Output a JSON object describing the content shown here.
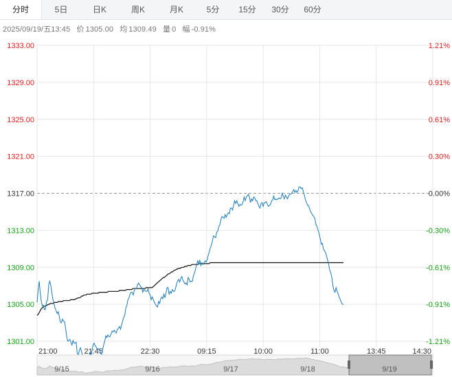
{
  "tabs": [
    {
      "label": "分时",
      "active": true
    },
    {
      "label": "5日",
      "active": false
    },
    {
      "label": "日K",
      "active": false
    },
    {
      "label": "周K",
      "active": false
    },
    {
      "label": "月K",
      "active": false
    },
    {
      "label": "5分",
      "active": false
    },
    {
      "label": "15分",
      "active": false
    },
    {
      "label": "30分",
      "active": false
    },
    {
      "label": "60分",
      "active": false
    }
  ],
  "info": {
    "datetime": "2025/09/19/五13:45",
    "price_label": "价",
    "price": "1305.00",
    "avg_label": "均",
    "avg": "1309.49",
    "vol_label": "量",
    "vol": "0",
    "change_label": "幅",
    "change": "-0.91%"
  },
  "colors": {
    "up": "#e02020",
    "down": "#14a014",
    "neutral": "#333333",
    "price_line": "#1a7ab8",
    "avg_line": "#111111",
    "grid": "#e6e6e6",
    "baseline": "#999999"
  },
  "chart_data": {
    "type": "line",
    "title": "",
    "base_price": 1317.0,
    "ylim": [
      1301.0,
      1333.0
    ],
    "y_ticks_left": [
      "1333.00",
      "1329.00",
      "1325.00",
      "1321.00",
      "1317.00",
      "1313.00",
      "1309.00",
      "1305.00",
      "1301.00"
    ],
    "y_ticks_right": [
      "1.21%",
      "0.91%",
      "0.61%",
      "0.30%",
      "0.00%",
      "-0.30%",
      "-0.61%",
      "-0.91%",
      "-1.21%"
    ],
    "x_tick_labels": [
      "21:00",
      "21:45",
      "22:30",
      "09:15",
      "10:00",
      "11:00",
      "13:45",
      "14:30"
    ],
    "grid": true,
    "series": [
      {
        "values": [
          1305.2,
          1306.5,
          1307.5,
          1306.2,
          1305.3,
          1304.8,
          1304.9,
          1304.4,
          1304.5,
          1305.3,
          1305.5,
          1307.1,
          1307.5,
          1307.0,
          1306.2,
          1305.5,
          1305.1,
          1304.6,
          1304.3,
          1304.0,
          1304.2,
          1303.7,
          1303.1,
          1303.0,
          1303.4,
          1303.2,
          1303.1,
          1302.4,
          1301.5,
          1301.0,
          1301.1,
          1301.2,
          1300.9,
          1300.6,
          1301.1,
          1300.8,
          1300.8,
          1300.9,
          1299.7,
          1299.5,
          1300.0,
          1300.3,
          1299.9,
          1299.5,
          1299.0,
          1298.7,
          1298.3,
          1299.1,
          1299.3,
          1299.1,
          1299.8,
          1299.4,
          1300.0,
          1300.6,
          1300.8,
          1300.5,
          1300.4,
          1300.1,
          1300.2,
          1300.1,
          1299.8,
          1299.6,
          1300.1,
          1300.6,
          1301.0,
          1301.6,
          1301.4,
          1301.7,
          1301.5,
          1301.5,
          1301.8,
          1302.1,
          1302.0,
          1302.2,
          1302.0,
          1301.9,
          1302.3,
          1302.4,
          1302.6,
          1302.3,
          1302.8,
          1303.2,
          1303.6,
          1303.8,
          1304.6,
          1304.9,
          1305.5,
          1305.7,
          1306.1,
          1306.3,
          1306.3,
          1306.0,
          1306.5,
          1306.7,
          1306.7,
          1307.1,
          1307.3,
          1307.1,
          1306.9,
          1306.8,
          1306.3,
          1306.6,
          1306.5,
          1306.4,
          1306.4,
          1306.7,
          1306.2,
          1306.0,
          1305.5,
          1305.8,
          1305.5,
          1305.2,
          1305.0,
          1304.8,
          1304.7,
          1305.3,
          1305.1,
          1305.6,
          1305.8,
          1305.6,
          1306.1,
          1305.7,
          1306.2,
          1306.8,
          1306.8,
          1306.1,
          1306.4,
          1306.2,
          1306.6,
          1306.4,
          1306.4,
          1306.7,
          1307.2,
          1307.5,
          1307.7,
          1307.4,
          1307.8,
          1308.0,
          1307.6,
          1307.4,
          1307.2,
          1307.3,
          1307.1,
          1307.9,
          1307.7,
          1307.4,
          1307.5,
          1307.5,
          1308.1,
          1308.4,
          1308.8,
          1309.3,
          1309.7,
          1309.4,
          1309.8,
          1309.2,
          1309.5,
          1309.3,
          1309.4,
          1309.7,
          1309.6,
          1309.8,
          1310.3,
          1310.7,
          1311.1,
          1311.4,
          1311.9,
          1312.4,
          1312.3,
          1312.2,
          1312.8,
          1312.9,
          1313.4,
          1313.6,
          1314.2,
          1314.5,
          1314.4,
          1314.3,
          1314.7,
          1314.4,
          1314.7,
          1314.9,
          1314.8,
          1315.4,
          1315.4,
          1315.2,
          1315.7,
          1316.2,
          1315.9,
          1316.2,
          1315.9,
          1315.6,
          1315.8,
          1315.7,
          1315.8,
          1316.1,
          1316.6,
          1316.2,
          1316.6,
          1316.7,
          1316.9,
          1316.6,
          1316.0,
          1316.4,
          1316.2,
          1316.6,
          1316.5,
          1316.2,
          1316.2,
          1315.9,
          1315.6,
          1315.4,
          1315.9,
          1316.0,
          1315.6,
          1316.0,
          1316.0,
          1316.1,
          1315.8,
          1315.6,
          1315.7,
          1315.8,
          1316.2,
          1316.3,
          1316.7,
          1316.3,
          1316.4,
          1316.3,
          1316.4,
          1316.5,
          1316.4,
          1316.5,
          1317.0,
          1316.7,
          1316.4,
          1316.8,
          1316.6,
          1316.4,
          1316.7,
          1316.9,
          1316.9,
          1317.0,
          1317.2,
          1317.4,
          1317.1,
          1317.3,
          1317.1,
          1317.3,
          1317.7,
          1317.7,
          1317.5,
          1317.6,
          1317.2,
          1316.8,
          1316.3,
          1316.0,
          1315.7,
          1315.7,
          1315.3,
          1315.0,
          1314.8,
          1314.6,
          1314.5,
          1314.2,
          1313.6,
          1313.4,
          1313.0,
          1312.6,
          1312.1,
          1311.5,
          1311.6,
          1311.0,
          1310.8,
          1310.6,
          1310.2,
          1309.8,
          1309.3,
          1308.7,
          1308.4,
          1307.9,
          1307.0,
          1306.5,
          1306.3,
          1306.8,
          1306.4,
          1306.1,
          1305.8,
          1305.5,
          1305.2,
          1305.0,
          1305.0
        ]
      },
      {
        "values": [
          1303.8,
          1303.9,
          1304.1,
          1304.3,
          1304.5,
          1304.6,
          1304.7,
          1304.8,
          1304.8,
          1304.9,
          1304.9,
          1305.0,
          1305.0,
          1305.1,
          1305.1,
          1305.1,
          1305.1,
          1305.2,
          1305.2,
          1305.2,
          1305.2,
          1305.3,
          1305.3,
          1305.3,
          1305.3,
          1305.3,
          1305.4,
          1305.4,
          1305.4,
          1305.4,
          1305.4,
          1305.4,
          1305.4,
          1305.5,
          1305.5,
          1305.5,
          1305.5,
          1305.5,
          1305.6,
          1305.6,
          1305.7,
          1305.7,
          1305.7,
          1305.8,
          1305.9,
          1305.9,
          1306.0,
          1306.0,
          1306.0,
          1306.1,
          1306.1,
          1306.1,
          1306.1,
          1306.1,
          1306.2,
          1306.2,
          1306.2,
          1306.2,
          1306.2,
          1306.2,
          1306.2,
          1306.3,
          1306.3,
          1306.3,
          1306.3,
          1306.3,
          1306.3,
          1306.3,
          1306.3,
          1306.3,
          1306.4,
          1306.4,
          1306.4,
          1306.4,
          1306.4,
          1306.4,
          1306.4,
          1306.4,
          1306.4,
          1306.4,
          1306.4,
          1306.5,
          1306.5,
          1306.5,
          1306.5,
          1306.5,
          1306.5,
          1306.5,
          1306.6,
          1306.6,
          1306.6,
          1306.6,
          1306.6,
          1306.6,
          1306.7,
          1306.7,
          1306.7,
          1306.7,
          1306.7,
          1306.7,
          1306.7,
          1306.7,
          1306.7,
          1306.7,
          1306.7,
          1306.7,
          1306.7,
          1306.8,
          1306.8,
          1306.8,
          1306.8,
          1306.8,
          1306.8,
          1306.8,
          1306.9,
          1307.0,
          1307.1,
          1307.2,
          1307.3,
          1307.4,
          1307.5,
          1307.6,
          1307.7,
          1307.8,
          1307.9,
          1307.9,
          1308.0,
          1308.1,
          1308.2,
          1308.3,
          1308.3,
          1308.4,
          1308.5,
          1308.5,
          1308.6,
          1308.7,
          1308.7,
          1308.8,
          1308.8,
          1308.9,
          1308.9,
          1308.9,
          1309.0,
          1309.0,
          1309.0,
          1309.1,
          1309.1,
          1309.1,
          1309.2,
          1309.2,
          1309.2,
          1309.2,
          1309.3,
          1309.3,
          1309.3,
          1309.3,
          1309.3,
          1309.3,
          1309.3,
          1309.4,
          1309.4,
          1309.4,
          1309.4,
          1309.4,
          1309.4,
          1309.4,
          1309.4,
          1309.4,
          1309.4,
          1309.4,
          1309.5,
          1309.5,
          1309.5,
          1309.5,
          1309.5,
          1309.5,
          1309.5,
          1309.5,
          1309.5,
          1309.5,
          1309.5,
          1309.5,
          1309.5,
          1309.5,
          1309.5,
          1309.5,
          1309.5,
          1309.5,
          1309.5,
          1309.5,
          1309.5,
          1309.5,
          1309.5,
          1309.5,
          1309.5,
          1309.5,
          1309.5,
          1309.5,
          1309.5,
          1309.5,
          1309.5,
          1309.5,
          1309.5,
          1309.5,
          1309.5,
          1309.5,
          1309.5,
          1309.5,
          1309.5,
          1309.5,
          1309.5,
          1309.5,
          1309.5,
          1309.5,
          1309.5,
          1309.5,
          1309.5,
          1309.5,
          1309.5,
          1309.5,
          1309.5,
          1309.5,
          1309.5,
          1309.5,
          1309.5,
          1309.5,
          1309.5,
          1309.5,
          1309.5,
          1309.5,
          1309.5,
          1309.5,
          1309.5,
          1309.5,
          1309.5,
          1309.5,
          1309.5,
          1309.5,
          1309.5,
          1309.5,
          1309.5,
          1309.5,
          1309.5,
          1309.5,
          1309.5,
          1309.5,
          1309.5,
          1309.5,
          1309.5,
          1309.5,
          1309.5,
          1309.5,
          1309.5,
          1309.5,
          1309.5,
          1309.5,
          1309.5,
          1309.5,
          1309.5,
          1309.5,
          1309.5,
          1309.5,
          1309.5,
          1309.5,
          1309.5,
          1309.5,
          1309.5,
          1309.5,
          1309.5,
          1309.5,
          1309.5,
          1309.5,
          1309.5,
          1309.5,
          1309.5,
          1309.5,
          1309.5,
          1309.5,
          1309.5,
          1309.5,
          1309.5,
          1309.5,
          1309.5,
          1309.5,
          1309.5,
          1309.5,
          1309.5,
          1309.5,
          1309.5,
          1309.5,
          1309.5,
          1309.5,
          1309.5,
          1309.5,
          1309.5,
          1309.5,
          1309.5,
          1309.5,
          1309.5,
          1309.5,
          1309.5,
          1309.5
        ]
      }
    ]
  },
  "navigator": {
    "dates": [
      "9/15",
      "9/16",
      "9/17",
      "9/18",
      "9/19"
    ]
  }
}
